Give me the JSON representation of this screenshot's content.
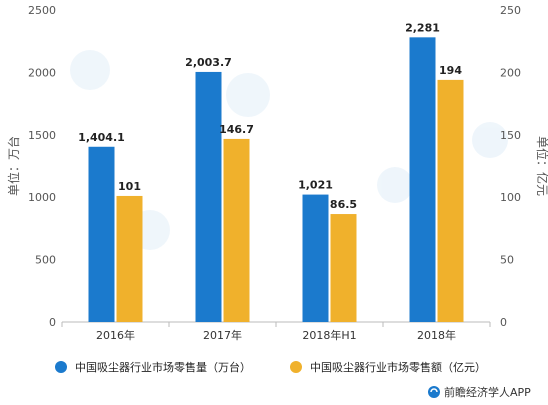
{
  "chart_data": {
    "type": "bar",
    "categories": [
      "2016年",
      "2017年",
      "2018年H1",
      "2018年"
    ],
    "series": [
      {
        "name": "中国吸尘器行业市场零售量（万台）",
        "axis": "left",
        "color": "#1B7ACD",
        "values": [
          1404.1,
          2003.7,
          1021,
          2281
        ],
        "labels": [
          "1,404.1",
          "2,003.7",
          "1,021",
          "2,281"
        ]
      },
      {
        "name": "中国吸尘器行业市场零售额（亿元）",
        "axis": "right",
        "color": "#F0B12C",
        "values": [
          101,
          146.7,
          86.5,
          194
        ],
        "labels": [
          "101",
          "146.7",
          "86.5",
          "194"
        ]
      }
    ],
    "y_left": {
      "label": "单位：万台",
      "ylim": [
        0,
        2500
      ],
      "ticks": [
        "0",
        "500",
        "1000",
        "1500",
        "2000",
        "2500"
      ]
    },
    "y_right": {
      "label": "单位：亿元",
      "ylim": [
        0,
        250
      ],
      "ticks": [
        "0",
        "50",
        "100",
        "150",
        "200",
        "250"
      ]
    },
    "legend_position": "bottom",
    "grid": false
  },
  "source": "前瞻经济学人APP"
}
